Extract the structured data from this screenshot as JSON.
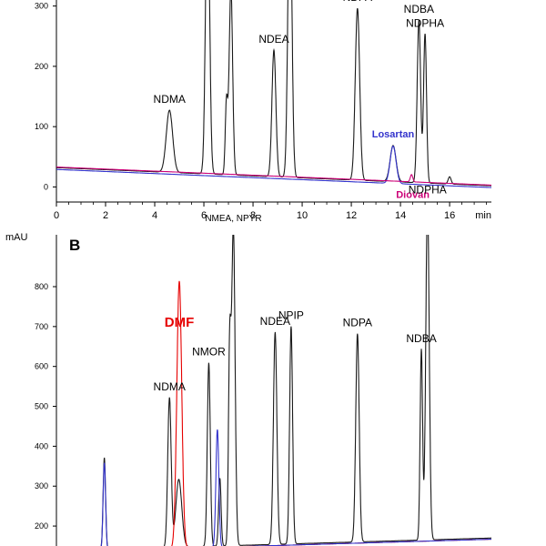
{
  "chart_data": [
    {
      "type": "line",
      "panel_letter": "",
      "ylabel": "",
      "xlabel": "min",
      "xlim": [
        0,
        17.7
      ],
      "ylim": [
        -25,
        310
      ],
      "yticks": [
        0,
        100,
        200,
        300
      ],
      "xticks": [
        0,
        2,
        4,
        6,
        8,
        10,
        12,
        14,
        16
      ],
      "baseline": {
        "start": 32,
        "end": 2
      },
      "series": [
        {
          "name": "",
          "color": "#1a1a1a",
          "peaks": [
            {
              "rt": 4.6,
              "height": 103,
              "width": 0.13,
              "label": "NDMA"
            },
            {
              "rt": 6.15,
              "height": 500,
              "width": 0.08,
              "label": ""
            },
            {
              "rt": 6.92,
              "height": 120,
              "width": 0.05,
              "label": ""
            },
            {
              "rt": 7.1,
              "height": 310,
              "width": 0.07,
              "label": ""
            },
            {
              "rt": 8.85,
              "height": 210,
              "width": 0.08,
              "label": "NDEA"
            },
            {
              "rt": 9.5,
              "height": 500,
              "width": 0.08,
              "label": ""
            },
            {
              "rt": 12.25,
              "height": 285,
              "width": 0.09,
              "label": "NDPA"
            },
            {
              "rt": 13.7,
              "height": 60,
              "width": 0.12,
              "label": ""
            },
            {
              "rt": 14.75,
              "height": 270,
              "width": 0.07,
              "label": "NDBA"
            },
            {
              "rt": 15.0,
              "height": 247,
              "width": 0.06,
              "label": "NDPHA"
            },
            {
              "rt": 16.0,
              "height": 12,
              "width": 0.06,
              "label": ""
            }
          ]
        },
        {
          "name": "Losartan",
          "color": "#3333cc",
          "peaks": [
            {
              "rt": 13.7,
              "height": 62,
              "width": 0.12,
              "label": ""
            }
          ]
        },
        {
          "name": "Diovan",
          "color": "#cc0077",
          "peaks": [
            {
              "rt": 14.45,
              "height": 12,
              "width": 0.05,
              "label": ""
            }
          ]
        }
      ],
      "annotations": [
        {
          "text": "Losartan",
          "color": "#3333cc",
          "x": 13.7,
          "y": 82
        },
        {
          "text": "Diovan",
          "color": "#cc0077",
          "x": 14.5,
          "y": -18
        }
      ]
    },
    {
      "type": "line",
      "panel_letter": "B",
      "ylabel": "mAU",
      "xlabel": "",
      "xlim": [
        0,
        17.7
      ],
      "ylim": [
        150,
        930
      ],
      "yticks": [
        200,
        300,
        400,
        500,
        600,
        700,
        800
      ],
      "baseline": {
        "start": 138,
        "end": 170
      },
      "series": [
        {
          "name": "",
          "color": "#1a1a1a",
          "peaks": [
            {
              "rt": 1.95,
              "height": 230,
              "width": 0.05,
              "label": ""
            },
            {
              "rt": 4.6,
              "height": 375,
              "width": 0.07,
              "label": "NDMA"
            },
            {
              "rt": 4.98,
              "height": 170,
              "width": 0.12,
              "label": ""
            },
            {
              "rt": 6.2,
              "height": 460,
              "width": 0.06,
              "label": "NMOR"
            },
            {
              "rt": 6.65,
              "height": 170,
              "width": 0.05,
              "label": ""
            },
            {
              "rt": 7.05,
              "height": 475,
              "width": 0.05,
              "label": ""
            },
            {
              "rt": 7.2,
              "height": 795,
              "width": 0.07,
              "label": "NMEA, NPYR"
            },
            {
              "rt": 8.9,
              "height": 532,
              "width": 0.07,
              "label": "NDEA"
            },
            {
              "rt": 9.55,
              "height": 545,
              "width": 0.06,
              "label": "NPIP"
            },
            {
              "rt": 12.25,
              "height": 522,
              "width": 0.07,
              "label": "NDPA"
            },
            {
              "rt": 14.85,
              "height": 478,
              "width": 0.05,
              "label": "NDBA"
            },
            {
              "rt": 15.1,
              "height": 850,
              "width": 0.07,
              "label": "NDPHA"
            }
          ]
        },
        {
          "name": "DMF",
          "color": "#e60000",
          "peaks": [
            {
              "rt": 5.0,
              "height": 670,
              "width": 0.1,
              "label": ""
            }
          ]
        },
        {
          "name": "",
          "color": "#3333cc",
          "peaks": [
            {
              "rt": 1.95,
              "height": 220,
              "width": 0.05,
              "label": ""
            },
            {
              "rt": 6.55,
              "height": 295,
              "width": 0.06,
              "label": ""
            }
          ]
        }
      ],
      "annotations": [
        {
          "text": "DMF",
          "color": "#e60000",
          "x": 5.0,
          "y": 700
        }
      ]
    }
  ]
}
